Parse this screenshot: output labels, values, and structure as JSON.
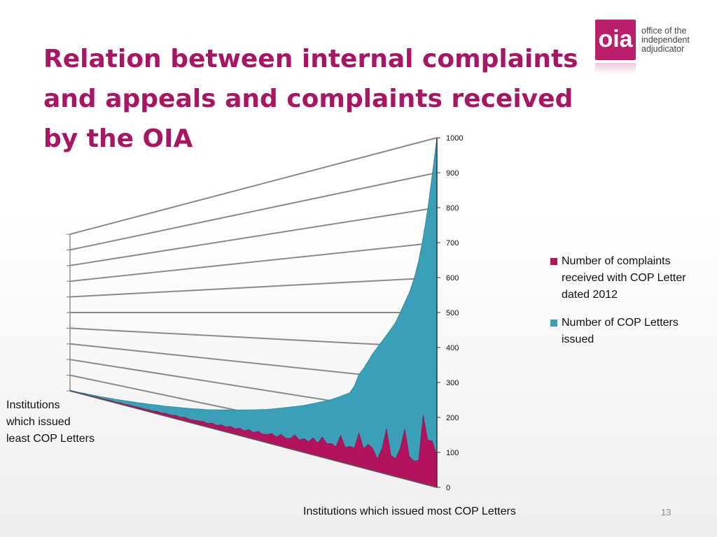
{
  "slide": {
    "title": "Relation between internal complaints and appeals and complaints received by the OIA",
    "page_number": "13"
  },
  "logo": {
    "mark": "oia",
    "line1": "office of the",
    "line2": "independent",
    "line3": "adjudicator",
    "color": "#bb1e6a"
  },
  "labels": {
    "left": "Institutions\nwhich issued\nleast COP Letters",
    "bottom": "Institutions which issued most COP Letters"
  },
  "chart_data": {
    "type": "area",
    "view": "3d-perspective",
    "y_ticks": [
      "0",
      "100",
      "200",
      "300",
      "400",
      "500",
      "600",
      "700",
      "800",
      "900",
      "1000"
    ],
    "ylim": [
      0,
      1000
    ],
    "x_description": "institutions ordered from least to most COP Letters issued",
    "series": [
      {
        "name": "Number of complaints received with COP Letter dated 2012",
        "color": "#b3135d",
        "values": [
          2,
          2,
          3,
          3,
          4,
          3,
          5,
          4,
          5,
          6,
          5,
          7,
          6,
          8,
          7,
          9,
          8,
          10,
          9,
          12,
          10,
          14,
          11,
          16,
          12,
          18,
          14,
          15,
          17,
          20,
          16,
          22,
          18,
          25,
          20,
          28,
          22,
          30,
          24,
          33,
          26,
          36,
          28,
          32,
          40,
          30,
          45,
          35,
          38,
          55,
          40,
          50,
          42,
          60,
          45,
          70,
          50,
          55,
          48,
          90,
          52,
          60,
          58,
          110,
          62,
          80,
          70,
          40,
          75,
          140,
          60,
          55,
          90,
          150,
          70,
          60,
          65,
          200,
          130,
          130,
          90
        ]
      },
      {
        "name": "Number of COP Letters issued",
        "color": "#3aa0b8",
        "values": [
          4,
          5,
          6,
          8,
          9,
          10,
          12,
          14,
          16,
          18,
          20,
          22,
          25,
          27,
          30,
          32,
          35,
          37,
          40,
          43,
          45,
          48,
          51,
          54,
          57,
          60,
          63,
          66,
          70,
          73,
          76,
          80,
          84,
          88,
          92,
          96,
          100,
          104,
          108,
          112,
          116,
          120,
          124,
          128,
          133,
          138,
          143,
          148,
          153,
          158,
          163,
          168,
          174,
          180,
          186,
          192,
          198,
          205,
          212,
          220,
          228,
          236,
          260,
          300,
          320,
          345,
          370,
          390,
          410,
          430,
          450,
          470,
          500,
          530,
          560,
          600,
          650,
          720,
          800,
          900,
          1000
        ]
      }
    ],
    "legend_position": "right",
    "grid": true
  }
}
